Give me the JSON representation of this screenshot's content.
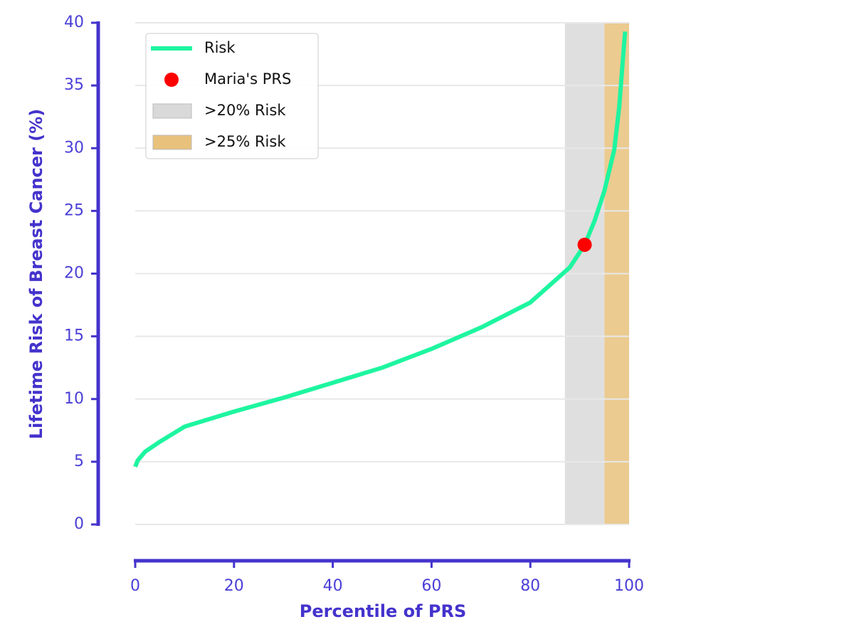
{
  "chart_data": {
    "type": "line",
    "xlabel": "Percentile of PRS",
    "ylabel": "Lifetime Risk of Breast Cancer (%)",
    "xlim": [
      0,
      100
    ],
    "ylim": [
      0,
      40
    ],
    "xticks": [
      0,
      20,
      40,
      60,
      80,
      100
    ],
    "yticks": [
      0,
      5,
      10,
      15,
      20,
      25,
      30,
      35,
      40
    ],
    "grid": true,
    "legend": "upper left",
    "spans": [
      {
        "name": ">20% Risk",
        "color": "#d9d9d9",
        "x": [
          87,
          95
        ]
      },
      {
        "name": ">25% Risk",
        "color": "#e8c27c",
        "x": [
          95,
          100
        ]
      }
    ],
    "series": [
      {
        "name": "Risk",
        "color": "#1ef5a0",
        "x": [
          0,
          0.5,
          2,
          5,
          10,
          20,
          30,
          40,
          50,
          60,
          70,
          80,
          88,
          91,
          93,
          95,
          97,
          98,
          99,
          99.2
        ],
        "values": [
          4.6,
          5.1,
          5.8,
          6.6,
          7.8,
          9.0,
          10.1,
          11.3,
          12.5,
          14.0,
          15.7,
          17.7,
          20.5,
          22.3,
          24.2,
          26.6,
          29.9,
          33.3,
          38.4,
          39.3
        ]
      },
      {
        "name": "Maria's PRS",
        "color": "#ff0000",
        "x": [
          91
        ],
        "values": [
          22.3
        ]
      }
    ]
  }
}
